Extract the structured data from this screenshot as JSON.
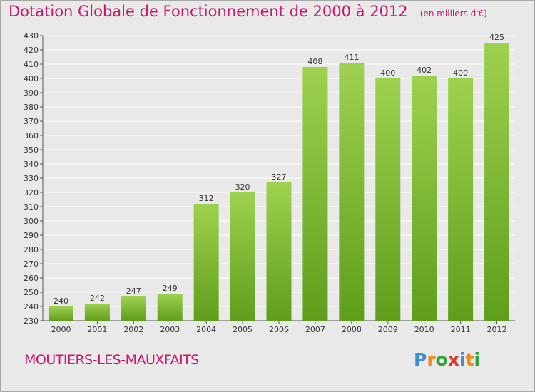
{
  "title": "Dotation Globale de Fonctionnement de 2000 à 2012",
  "unit": "(en milliers d'€)",
  "city": "MOUTIERS-LES-MAUXFAITS",
  "logo": {
    "letters": [
      "P",
      "r",
      "o",
      "x",
      "i",
      "t",
      "i"
    ],
    "colors": [
      "#3a8ed8",
      "#f08a1c",
      "#2fa33b",
      "#d63a2b",
      "#3a8ed8",
      "#f08a1c",
      "#2fa33b"
    ]
  },
  "colors": {
    "title": "#c8186e",
    "bar_top": "#9fd150",
    "bar_bottom": "#5f9e1b",
    "grid": "#ffffff",
    "background": "#e9e9e9"
  },
  "chart_data": {
    "type": "bar",
    "title": "Dotation Globale de Fonctionnement de 2000 à 2012",
    "subtitle": "(en milliers d'€)",
    "xlabel": "",
    "ylabel": "",
    "categories": [
      "2000",
      "2001",
      "2002",
      "2003",
      "2004",
      "2005",
      "2006",
      "2007",
      "2008",
      "2009",
      "2010",
      "2011",
      "2012"
    ],
    "values": [
      240,
      242,
      247,
      249,
      312,
      320,
      327,
      408,
      411,
      400,
      402,
      400,
      425
    ],
    "ylim": [
      230,
      430
    ],
    "ytick_step": 10,
    "grid": true,
    "legend": "none"
  }
}
